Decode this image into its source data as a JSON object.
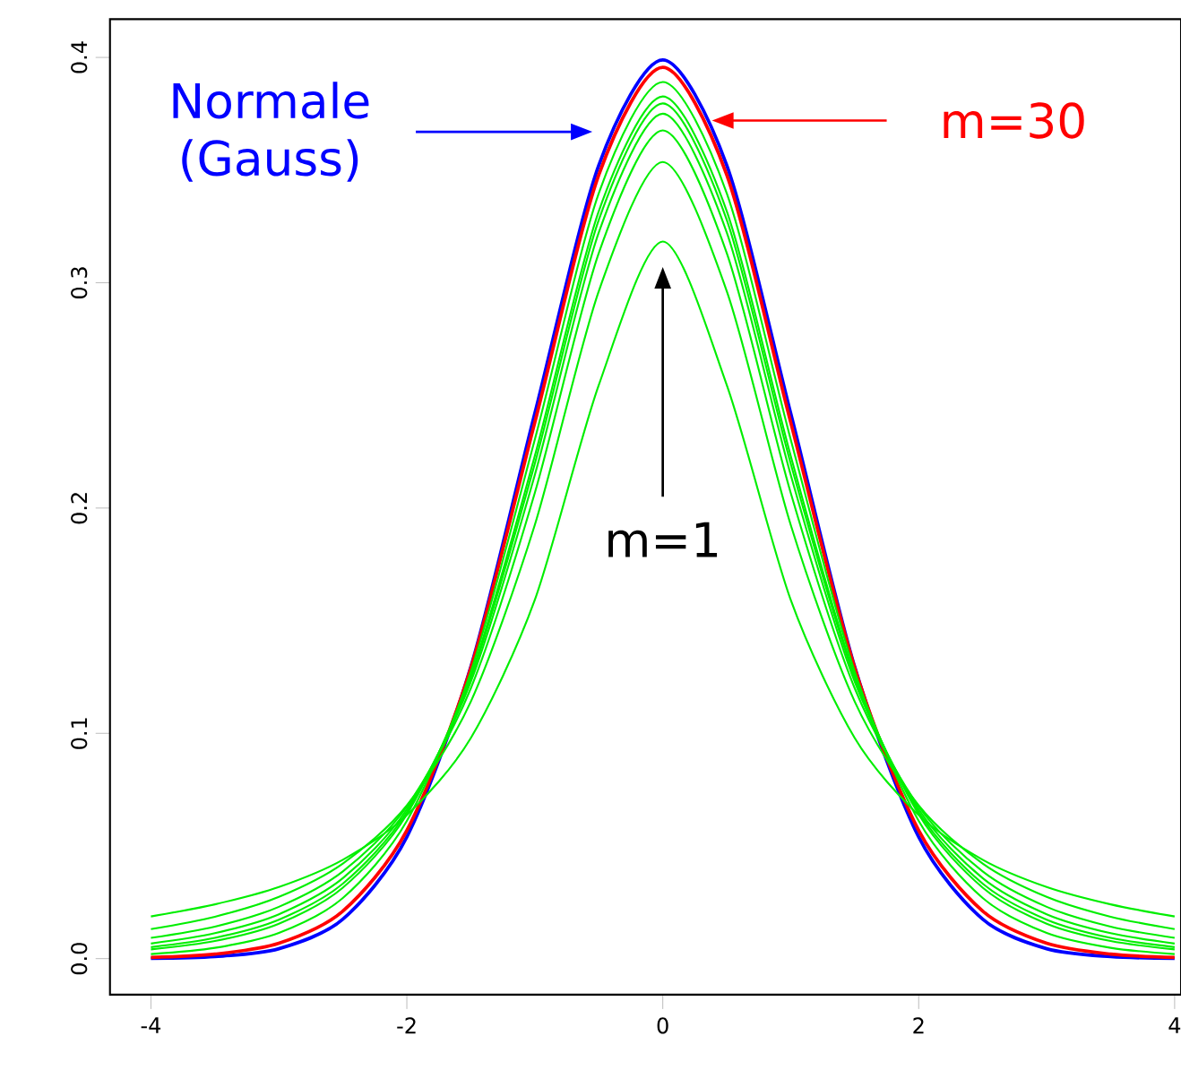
{
  "chart_data": {
    "type": "line",
    "x": [
      -4,
      -3.5,
      -3,
      -2.5,
      -2,
      -1.5,
      -1,
      -0.5,
      0,
      0.5,
      1,
      1.5,
      2,
      2.5,
      3,
      3.5,
      4
    ],
    "series": [
      {
        "color": "#0000ff",
        "values": [
          0.0001,
          0.0009,
          0.0044,
          0.0175,
          0.054,
          0.1295,
          0.242,
          0.3521,
          0.3989,
          0.3521,
          0.242,
          0.1295,
          0.054,
          0.0175,
          0.0044,
          0.0009,
          0.0001
        ]
      },
      {
        "color": "#ff0000",
        "values": [
          0.0005,
          0.002,
          0.0068,
          0.0211,
          0.0569,
          0.129,
          0.238,
          0.3479,
          0.3956,
          0.3479,
          0.238,
          0.129,
          0.0569,
          0.0211,
          0.0068,
          0.002,
          0.0005
        ]
      },
      {
        "color": "#00ee00",
        "values": [
          0.0187,
          0.0241,
          0.0318,
          0.0439,
          0.0637,
          0.0979,
          0.1592,
          0.2546,
          0.3183,
          0.2546,
          0.1592,
          0.0979,
          0.0637,
          0.0439,
          0.0318,
          0.0241,
          0.0187
        ]
      },
      {
        "color": "#00ee00",
        "values": [
          0.0131,
          0.0186,
          0.0274,
          0.0422,
          0.068,
          0.1141,
          0.1925,
          0.2963,
          0.3536,
          0.2963,
          0.1925,
          0.1141,
          0.068,
          0.0422,
          0.0274,
          0.0186,
          0.0131
        ]
      },
      {
        "color": "#00ee00",
        "values": [
          0.0092,
          0.0142,
          0.023,
          0.0387,
          0.0675,
          0.12,
          0.2067,
          0.3132,
          0.3676,
          0.3132,
          0.2067,
          0.12,
          0.0675,
          0.0387,
          0.023,
          0.0142,
          0.0092
        ]
      },
      {
        "color": "#00ee00",
        "values": [
          0.0067,
          0.0113,
          0.0197,
          0.0357,
          0.0663,
          0.1229,
          0.2147,
          0.3223,
          0.375,
          0.3223,
          0.2147,
          0.1229,
          0.0663,
          0.0357,
          0.0197,
          0.0113,
          0.0067
        ]
      },
      {
        "color": "#00ee00",
        "values": [
          0.0051,
          0.0092,
          0.0173,
          0.0333,
          0.0651,
          0.1245,
          0.2197,
          0.3279,
          0.3796,
          0.3279,
          0.2197,
          0.1245,
          0.0651,
          0.0333,
          0.0173,
          0.0092,
          0.0051
        ]
      },
      {
        "color": "#00ee00",
        "values": [
          0.0041,
          0.0078,
          0.0155,
          0.0315,
          0.064,
          0.1256,
          0.2231,
          0.3318,
          0.3827,
          0.3318,
          0.2231,
          0.1256,
          0.064,
          0.0315,
          0.0155,
          0.0078,
          0.0041
        ]
      },
      {
        "color": "#00ee00",
        "values": [
          0.002,
          0.0048,
          0.0114,
          0.0269,
          0.0611,
          0.1274,
          0.2304,
          0.3397,
          0.3891,
          0.3397,
          0.2304,
          0.1274,
          0.0611,
          0.0269,
          0.0114,
          0.0048,
          0.002
        ]
      }
    ],
    "xlim": [
      -4.32,
      4.05
    ],
    "ylim": [
      -0.016,
      0.417
    ],
    "xticks": [
      -4,
      -2,
      0,
      2,
      4
    ],
    "yticks": [
      {
        "value": 0,
        "label": "0.0"
      },
      {
        "value": 0.1,
        "label": "0.1"
      },
      {
        "value": 0.2,
        "label": "0.2"
      },
      {
        "value": 0.3,
        "label": "0.3"
      },
      {
        "value": 0.4,
        "label": "0.4"
      }
    ],
    "grid": false,
    "marker": "none",
    "line_style": "solid",
    "annotations": [
      "Normale (Gauss)",
      "m=30",
      "m=1"
    ]
  }
}
